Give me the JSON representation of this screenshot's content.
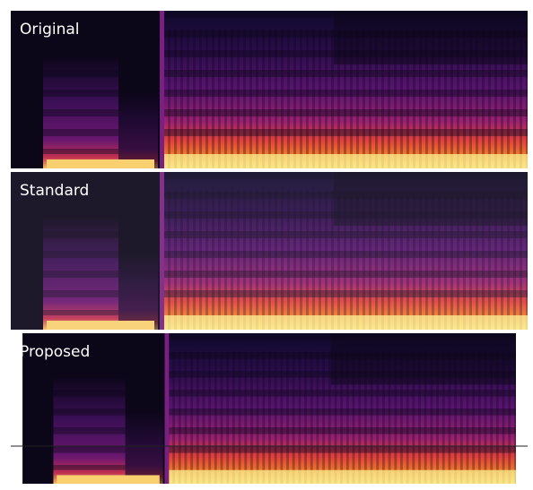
{
  "panels": [
    {
      "label": "Original"
    },
    {
      "label": "Standard"
    },
    {
      "label": "Proposed"
    }
  ]
}
